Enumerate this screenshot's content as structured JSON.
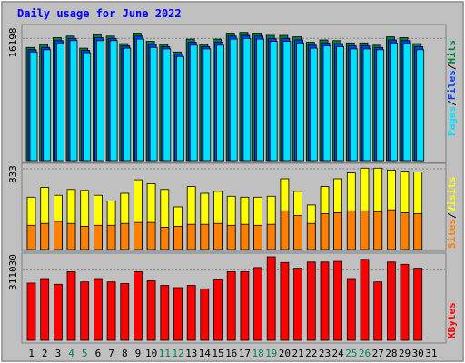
{
  "title": "Daily usage for June 2022",
  "colors": {
    "background": "#c0c0c0",
    "plot": "#c0c0c0",
    "hits": "#008040",
    "files": "#0040ff",
    "pages": "#00e0ff",
    "visits": "#ffff00",
    "sites": "#ff8000",
    "kbytes": "#ff0000",
    "title": "#0000ff"
  },
  "chart_data": [
    {
      "type": "bar",
      "title": "Daily usage for June 2022",
      "y_tick_label": "16198",
      "right_label": [
        "Pages",
        "Files",
        "Hits"
      ],
      "categories": [
        "1",
        "2",
        "3",
        "4",
        "5",
        "6",
        "7",
        "8",
        "9",
        "10",
        "11",
        "12",
        "13",
        "14",
        "15",
        "16",
        "17",
        "18",
        "19",
        "20",
        "21",
        "22",
        "23",
        "24",
        "25",
        "26",
        "27",
        "28",
        "29",
        "30",
        "31"
      ],
      "weekend_days": [
        "4",
        "5",
        "11",
        "12",
        "18",
        "19",
        "25",
        "26"
      ],
      "ylim": [
        0,
        17800
      ],
      "series": [
        {
          "name": "Hits",
          "values": [
            15000,
            15400,
            16300,
            16500,
            14900,
            16700,
            16500,
            15500,
            16900,
            15800,
            15400,
            14400,
            16100,
            15400,
            16100,
            16900,
            17000,
            16900,
            16600,
            16600,
            16400,
            15700,
            16000,
            15900,
            15600,
            15600,
            15300,
            16400,
            16300,
            15500,
            0
          ]
        },
        {
          "name": "Files",
          "values": [
            14700,
            15000,
            15900,
            16200,
            14600,
            16300,
            16200,
            15200,
            16500,
            15400,
            15100,
            14100,
            15700,
            15100,
            15700,
            16500,
            16600,
            16500,
            16200,
            16200,
            16000,
            15300,
            15600,
            15500,
            15200,
            15200,
            15000,
            16000,
            15900,
            15100,
            0
          ]
        },
        {
          "name": "Pages",
          "values": [
            14400,
            14700,
            15500,
            15900,
            14300,
            15900,
            15900,
            14900,
            16100,
            15000,
            14800,
            13800,
            15300,
            14800,
            15300,
            16100,
            16200,
            16100,
            15800,
            15800,
            15600,
            14900,
            15200,
            15100,
            14800,
            14800,
            14700,
            15600,
            15500,
            14700,
            0
          ]
        }
      ]
    },
    {
      "type": "bar",
      "y_tick_label": "833",
      "right_label": [
        "Sites",
        "Visits"
      ],
      "categories": [
        "1",
        "2",
        "3",
        "4",
        "5",
        "6",
        "7",
        "8",
        "9",
        "10",
        "11",
        "12",
        "13",
        "14",
        "15",
        "16",
        "17",
        "18",
        "19",
        "20",
        "21",
        "22",
        "23",
        "24",
        "25",
        "26",
        "27",
        "28",
        "29",
        "30",
        "31"
      ],
      "ylim": [
        0,
        880
      ],
      "series": [
        {
          "name": "Visits",
          "values": [
            540,
            640,
            560,
            620,
            610,
            560,
            500,
            580,
            720,
            680,
            620,
            440,
            650,
            580,
            600,
            550,
            540,
            540,
            550,
            730,
            600,
            460,
            650,
            730,
            790,
            840,
            840,
            820,
            810,
            800,
            0
          ]
        },
        {
          "name": "Sites",
          "values": [
            250,
            270,
            290,
            270,
            240,
            250,
            250,
            270,
            280,
            280,
            230,
            240,
            260,
            260,
            270,
            250,
            260,
            250,
            260,
            400,
            350,
            270,
            370,
            380,
            400,
            400,
            390,
            410,
            380,
            370,
            0
          ]
        }
      ]
    },
    {
      "type": "bar",
      "y_tick_label": "311030",
      "right_label": [
        "KBytes"
      ],
      "categories": [
        "1",
        "2",
        "3",
        "4",
        "5",
        "6",
        "7",
        "8",
        "9",
        "10",
        "11",
        "12",
        "13",
        "14",
        "15",
        "16",
        "17",
        "18",
        "19",
        "20",
        "21",
        "22",
        "23",
        "24",
        "25",
        "26",
        "27",
        "28",
        "29",
        "30",
        "31"
      ],
      "ylim": [
        0,
        373000
      ],
      "series": [
        {
          "name": "KBytes",
          "values": [
            250000,
            270000,
            245000,
            300000,
            255000,
            270000,
            255000,
            248000,
            300000,
            260000,
            240000,
            230000,
            240000,
            225000,
            268000,
            300000,
            300000,
            318000,
            365000,
            340000,
            315000,
            342000,
            342000,
            345000,
            270000,
            354000,
            255000,
            342000,
            332000,
            315000,
            0
          ]
        }
      ]
    }
  ]
}
